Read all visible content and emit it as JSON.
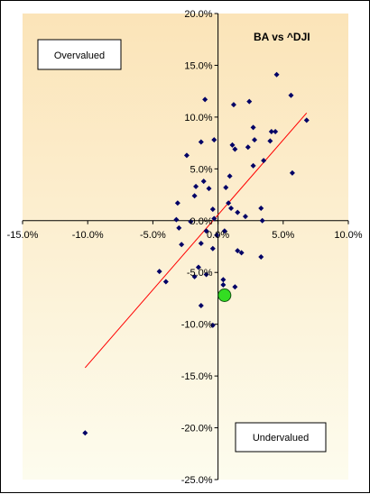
{
  "chart_data": {
    "type": "scatter",
    "title": "BA vs ^DJI",
    "xlabel": "",
    "ylabel": "",
    "xlim": [
      -0.15,
      0.1
    ],
    "ylim": [
      -0.25,
      0.2
    ],
    "x_ticks": [
      "-15.0%",
      "-10.0%",
      "-5.0%",
      "0.0%",
      "5.0%",
      "10.0%"
    ],
    "y_ticks": [
      "20.0%",
      "15.0%",
      "10.0%",
      "5.0%",
      "0.0%",
      "-5.0%",
      "-10.0%",
      "-15.0%",
      "-20.0%",
      "-25.0%"
    ],
    "annotations": {
      "overvalued": "Overvalued",
      "undervalued": "Undervalued"
    },
    "grid": false,
    "colors": {
      "points": "#000066",
      "trendline": "#ff0000",
      "highlight": "#33dd22",
      "bg_top": "#fbe4b8",
      "bg_bottom": "#fdfcee"
    },
    "points": [
      [
        -0.01,
        0.117
      ],
      [
        0.045,
        0.141
      ],
      [
        0.056,
        0.121
      ],
      [
        0.068,
        0.097
      ],
      [
        0.024,
        0.115
      ],
      [
        0.012,
        0.112
      ],
      [
        0.041,
        0.086
      ],
      [
        0.044,
        0.086
      ],
      [
        0.027,
        0.09
      ],
      [
        0.04,
        0.077
      ],
      [
        0.028,
        0.078
      ],
      [
        0.023,
        0.071
      ],
      [
        0.011,
        0.073
      ],
      [
        0.013,
        0.069
      ],
      [
        -0.003,
        0.078
      ],
      [
        -0.013,
        0.076
      ],
      [
        -0.024,
        0.063
      ],
      [
        0.035,
        0.058
      ],
      [
        0.027,
        0.053
      ],
      [
        0.057,
        0.046
      ],
      [
        0.009,
        0.043
      ],
      [
        -0.011,
        0.038
      ],
      [
        -0.017,
        0.033
      ],
      [
        -0.007,
        0.031
      ],
      [
        0.006,
        0.032
      ],
      [
        -0.018,
        0.024
      ],
      [
        -0.031,
        0.017
      ],
      [
        0.008,
        0.017
      ],
      [
        -0.004,
        0.011
      ],
      [
        0.01,
        0.012
      ],
      [
        0.015,
        0.008
      ],
      [
        0.033,
        0.012
      ],
      [
        0.021,
        0.004
      ],
      [
        -0.032,
        0.001
      ],
      [
        -0.021,
        -0.001
      ],
      [
        -0.003,
        0.002
      ],
      [
        0.034,
        0.0
      ],
      [
        -0.03,
        -0.007
      ],
      [
        -0.009,
        -0.01
      ],
      [
        0.005,
        -0.01
      ],
      [
        -0.001,
        -0.014
      ],
      [
        -0.028,
        -0.023
      ],
      [
        -0.013,
        -0.022
      ],
      [
        -0.004,
        -0.027
      ],
      [
        0.015,
        -0.029
      ],
      [
        0.018,
        -0.031
      ],
      [
        0.033,
        -0.035
      ],
      [
        -0.015,
        -0.045
      ],
      [
        -0.045,
        -0.049
      ],
      [
        -0.009,
        -0.052
      ],
      [
        -0.018,
        -0.054
      ],
      [
        -0.04,
        -0.059
      ],
      [
        0.004,
        -0.057
      ],
      [
        0.004,
        -0.062
      ],
      [
        0.013,
        -0.064
      ],
      [
        -0.013,
        -0.082
      ],
      [
        -0.004,
        -0.101
      ],
      [
        -0.102,
        -0.205
      ]
    ],
    "highlight_point": [
      0.005,
      -0.072
    ],
    "trendline": {
      "x": [
        -0.102,
        0.068
      ],
      "y": [
        -0.142,
        0.104
      ]
    }
  }
}
